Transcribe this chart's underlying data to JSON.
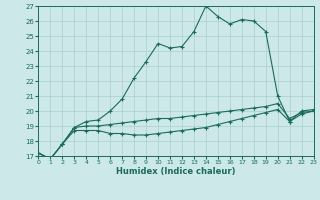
{
  "bg_color": "#cce8e8",
  "grid_color": "#aacfcf",
  "line_color": "#1a6b5a",
  "xlabel": "Humidex (Indice chaleur)",
  "ylim": [
    17,
    27
  ],
  "xlim": [
    0,
    23
  ],
  "yticks": [
    17,
    18,
    19,
    20,
    21,
    22,
    23,
    24,
    25,
    26,
    27
  ],
  "xticks": [
    0,
    1,
    2,
    3,
    4,
    5,
    6,
    7,
    8,
    9,
    10,
    11,
    12,
    13,
    14,
    15,
    16,
    17,
    18,
    19,
    20,
    21,
    22,
    23
  ],
  "series": [
    {
      "x": [
        0,
        1,
        2,
        3,
        4,
        5,
        6,
        7,
        8,
        9,
        10,
        11,
        12,
        13,
        14,
        15,
        16,
        17,
        18,
        19,
        20,
        21,
        22,
        23
      ],
      "y": [
        17.2,
        16.8,
        17.8,
        18.9,
        19.3,
        19.4,
        20.0,
        20.8,
        22.2,
        23.3,
        24.5,
        24.2,
        24.3,
        25.3,
        27.0,
        26.3,
        25.8,
        26.1,
        26.0,
        25.3,
        21.0,
        19.3,
        20.0,
        20.1
      ]
    },
    {
      "x": [
        0,
        1,
        2,
        3,
        4,
        5,
        6,
        7,
        8,
        9,
        10,
        11,
        12,
        13,
        14,
        15,
        16,
        17,
        18,
        19,
        20,
        21,
        22,
        23
      ],
      "y": [
        17.2,
        16.8,
        17.8,
        18.9,
        19.0,
        19.0,
        19.1,
        19.2,
        19.3,
        19.4,
        19.5,
        19.5,
        19.6,
        19.7,
        19.8,
        19.9,
        20.0,
        20.1,
        20.2,
        20.3,
        20.5,
        19.5,
        19.9,
        20.0
      ]
    },
    {
      "x": [
        0,
        1,
        2,
        3,
        4,
        5,
        6,
        7,
        8,
        9,
        10,
        11,
        12,
        13,
        14,
        15,
        16,
        17,
        18,
        19,
        20,
        21,
        22,
        23
      ],
      "y": [
        17.2,
        16.8,
        17.8,
        18.7,
        18.7,
        18.7,
        18.5,
        18.5,
        18.4,
        18.4,
        18.5,
        18.6,
        18.7,
        18.8,
        18.9,
        19.1,
        19.3,
        19.5,
        19.7,
        19.9,
        20.1,
        19.3,
        19.8,
        20.0
      ]
    }
  ]
}
